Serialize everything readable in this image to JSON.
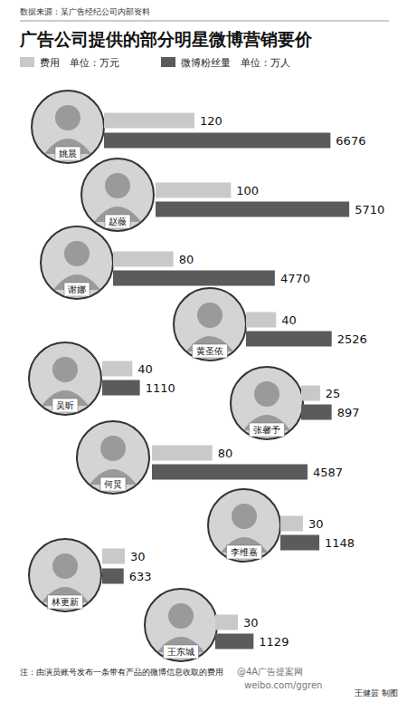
{
  "chart_data": {
    "type": "bar",
    "orientation": "horizontal",
    "title": "广告公司提供的部分明星微博营销要价",
    "subtitle": "数据来源：某广告经纪公司内部资料",
    "categories": [
      "姚晨",
      "赵薇",
      "谢娜",
      "黄圣依",
      "吴昕",
      "张馨予",
      "何炅",
      "李维嘉",
      "林更新",
      "王东城"
    ],
    "series": [
      {
        "name": "费用　单位：万元",
        "color": "#c9c9c9",
        "axis": "y2",
        "values": [
          120,
          100,
          80,
          40,
          40,
          25,
          80,
          30,
          30,
          30
        ]
      },
      {
        "name": "微博粉丝量　单位：万人",
        "color": "#5b5b5b",
        "values": [
          6676,
          5710,
          4770,
          2526,
          1110,
          897,
          4587,
          1148,
          633,
          1129
        ]
      }
    ],
    "ylim": [
      0,
      8000
    ],
    "y2lim": [
      0,
      360
    ],
    "tick_labels": false,
    "data_labels": true,
    "annotations": [
      "注：由演员账号发布一条带有产品的微博信息收取的费用",
      "王健芸 制图",
      "@4A广告提案网",
      "weibo.com/ggren"
    ]
  }
}
